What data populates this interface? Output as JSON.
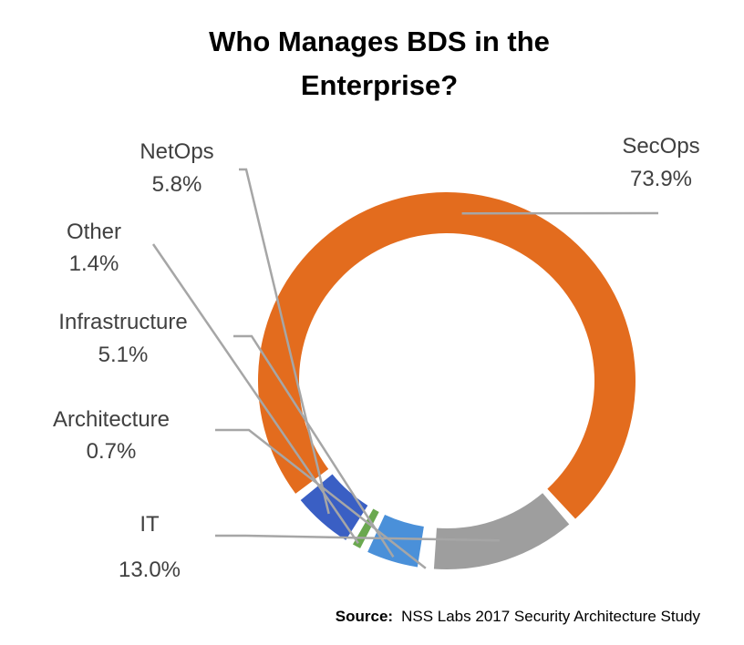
{
  "chart_data": {
    "type": "pie",
    "donut": true,
    "title_lines": [
      "Who Manages BDS in the",
      "Enterprise?"
    ],
    "slices": [
      {
        "label": "SecOps",
        "value_label": "73.9%",
        "value": 73.9,
        "color": "#e36c1e"
      },
      {
        "label": "IT",
        "value_label": "13.0%",
        "value": 13.0,
        "color": "#9e9e9e"
      },
      {
        "label": "Architecture",
        "value_label": "0.7%",
        "value": 0.7,
        "color": "#ffffff"
      },
      {
        "label": "Infrastructure",
        "value_label": "5.1%",
        "value": 5.1,
        "color": "#4a90d9"
      },
      {
        "label": "Other",
        "value_label": "1.4%",
        "value": 1.4,
        "color": "#6aa84f"
      },
      {
        "label": "NetOps",
        "value_label": "5.8%",
        "value": 5.8,
        "color": "#3a5fc4"
      }
    ],
    "source_label": "Source:",
    "source_text": "NSS Labs 2017 Security Architecture Study"
  }
}
